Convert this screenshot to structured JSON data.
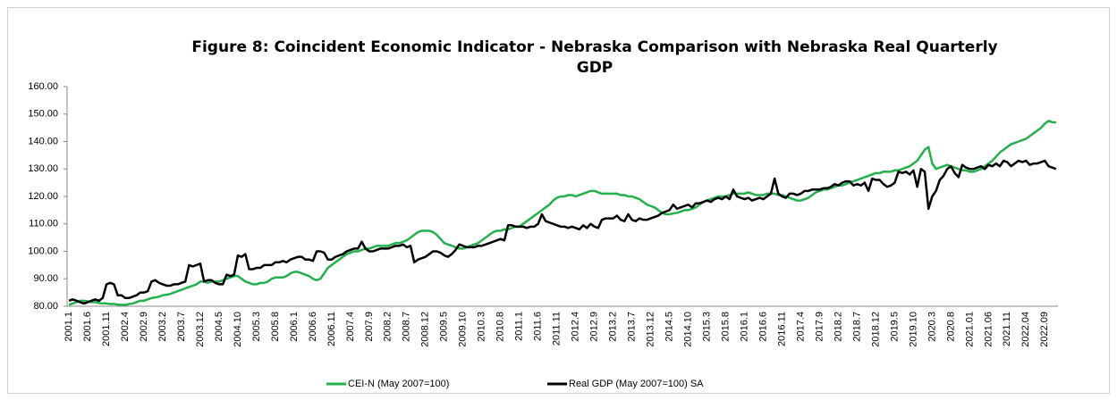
{
  "chart_data": {
    "type": "line",
    "title": "Figure 8: Coincident Economic Indicator - Nebraska Comparison with Nebraska Real Quarterly",
    "title_line2": "GDP",
    "categories": [
      "2001.1",
      null,
      null,
      null,
      null,
      "2001.6",
      null,
      null,
      null,
      null,
      "2001.11",
      null,
      null,
      null,
      null,
      "2002.4",
      null,
      null,
      null,
      null,
      "2002.9",
      null,
      null,
      null,
      null,
      "2003.2",
      null,
      null,
      null,
      null,
      "2003.7",
      null,
      null,
      null,
      null,
      "2003.12",
      null,
      null,
      null,
      null,
      "2004.5",
      null,
      null,
      null,
      null,
      "2004.10",
      null,
      null,
      null,
      null,
      "2005.3",
      null,
      null,
      null,
      null,
      "2005.8",
      null,
      null,
      null,
      null,
      "2006.1",
      null,
      null,
      null,
      null,
      "2006.6",
      null,
      null,
      null,
      null,
      "2006.11",
      null,
      null,
      null,
      null,
      "2007.4",
      null,
      null,
      null,
      null,
      "2007.9",
      null,
      null,
      null,
      null,
      "2008.2",
      null,
      null,
      null,
      null,
      "2008.7",
      null,
      null,
      null,
      null,
      "2008.12",
      null,
      null,
      null,
      null,
      "2009.5",
      null,
      null,
      null,
      null,
      "2009.10",
      null,
      null,
      null,
      null,
      "2010.3",
      null,
      null,
      null,
      null,
      "2010.8",
      null,
      null,
      null,
      null,
      "2011.1",
      null,
      null,
      null,
      null,
      "2011.6",
      null,
      null,
      null,
      null,
      "2011.11",
      null,
      null,
      null,
      null,
      "2012.4",
      null,
      null,
      null,
      null,
      "2012.9",
      null,
      null,
      null,
      null,
      "2013.2",
      null,
      null,
      null,
      null,
      "2013.7",
      null,
      null,
      null,
      null,
      "2013.12",
      null,
      null,
      null,
      null,
      "2014.5",
      null,
      null,
      null,
      null,
      "2014.10",
      null,
      null,
      null,
      null,
      "2015.3",
      null,
      null,
      null,
      null,
      "2015.8",
      null,
      null,
      null,
      null,
      "2016.1",
      null,
      null,
      null,
      null,
      "2016.6",
      null,
      null,
      null,
      null,
      "2016.11",
      null,
      null,
      null,
      null,
      "2017.4",
      null,
      null,
      null,
      null,
      "2017.9",
      null,
      null,
      null,
      null,
      "2018.2",
      null,
      null,
      null,
      null,
      "2018.7",
      null,
      null,
      null,
      null,
      "2018.12",
      null,
      null,
      null,
      null,
      "2019.5",
      null,
      null,
      null,
      null,
      "2019.10",
      null,
      null,
      null,
      null,
      "2020.3",
      null,
      null,
      null,
      null,
      "2020.8",
      null,
      null,
      null,
      null,
      "2021.01",
      null,
      null,
      null,
      null,
      "2021.06",
      null,
      null,
      null,
      null,
      "2021.11",
      null,
      null,
      null,
      null,
      "2022.04",
      null,
      null,
      null,
      null,
      "2022.09",
      null,
      null,
      null
    ],
    "series": [
      {
        "name": "CEI-N (May 2007=100)",
        "color": "#22b14c",
        "values": [
          80.5,
          81,
          81.5,
          82,
          82,
          81.8,
          81.5,
          81.5,
          81.2,
          81,
          81,
          80.8,
          80.8,
          80.6,
          80.5,
          80.5,
          80.8,
          81,
          81.5,
          82,
          82,
          82.5,
          83,
          83.2,
          83.5,
          84,
          84.2,
          84.5,
          85,
          85.5,
          86,
          86.5,
          87,
          87.5,
          88,
          89,
          89,
          88.5,
          89,
          89,
          89,
          89.5,
          90,
          90.5,
          91,
          91,
          90,
          89,
          88.5,
          88,
          88,
          88.5,
          88.5,
          89,
          90,
          90.5,
          90.5,
          90.5,
          91,
          92,
          92.5,
          92.5,
          92,
          91.5,
          91,
          90,
          89.5,
          90,
          92,
          94,
          95,
          96,
          97,
          98,
          99,
          99.5,
          100,
          100,
          100.5,
          101,
          101,
          101.5,
          102,
          102,
          102,
          102,
          102.5,
          103,
          103,
          103.5,
          104,
          105,
          106,
          107,
          107.5,
          107.5,
          107.5,
          107,
          106,
          104.5,
          103,
          102.5,
          102,
          101.5,
          101,
          101,
          101.5,
          102,
          102.5,
          103,
          104,
          105,
          106,
          107,
          107.5,
          107.5,
          108,
          108,
          108.5,
          109,
          109,
          110,
          111,
          112,
          113,
          114,
          115,
          116,
          117,
          118.5,
          119.5,
          120,
          120,
          120.5,
          120.5,
          120,
          120.5,
          121,
          121.5,
          122,
          122,
          121.5,
          121,
          121,
          121,
          121,
          121,
          120.5,
          120.5,
          120,
          120,
          119.5,
          119,
          118,
          117,
          116.5,
          116,
          115,
          114,
          113.5,
          113.5,
          113.8,
          114,
          114.5,
          115,
          115,
          115.5,
          116,
          117,
          118,
          118.5,
          119,
          119.5,
          120,
          120,
          120,
          120.5,
          121,
          121,
          121,
          121,
          121.5,
          121,
          120.5,
          120.5,
          120.5,
          121,
          121,
          121,
          120.5,
          120.5,
          120,
          119.5,
          119,
          118.5,
          118.5,
          119,
          119.5,
          120.5,
          121.5,
          122,
          122.5,
          122.5,
          123,
          123.5,
          124,
          124,
          124.5,
          125,
          125.5,
          126,
          126.5,
          127,
          127.5,
          128,
          128.5,
          128.5,
          129,
          129,
          129,
          129.5,
          129.5,
          130,
          130.5,
          131,
          132,
          133,
          135,
          137,
          138,
          132,
          130,
          130.5,
          131,
          131.5,
          131,
          130.5,
          130,
          129.5,
          129.5,
          129,
          129,
          129.5,
          130,
          131,
          132,
          133,
          134.5,
          136,
          137,
          138,
          139,
          139.5,
          140,
          140.5,
          141,
          142,
          143,
          144,
          145,
          146.5,
          147.5,
          147,
          147
        ]
      },
      {
        "name": "Real GDP (May 2007=100) SA",
        "color": "#000000",
        "values": [
          82,
          82.5,
          82,
          81.5,
          81,
          81.5,
          82,
          82.5,
          82,
          83,
          88,
          88.5,
          88,
          84,
          84,
          83,
          83,
          83.5,
          84,
          85,
          85,
          85.5,
          89,
          89.5,
          88.5,
          88,
          87.5,
          87.5,
          88,
          88,
          88.5,
          89,
          95,
          94.5,
          95,
          95.5,
          89,
          89.5,
          89.5,
          88.5,
          88,
          88,
          91.5,
          91,
          91.5,
          98.5,
          98,
          99,
          93.5,
          93.5,
          94,
          94,
          95,
          95,
          95,
          96,
          96,
          96.5,
          96,
          97,
          97.5,
          98,
          98,
          97,
          97,
          96.5,
          100,
          100,
          99.5,
          97,
          97,
          98,
          98.5,
          99,
          100,
          100.5,
          101,
          101,
          103.5,
          101,
          100,
          100,
          100.5,
          101,
          101,
          101,
          101.5,
          102,
          102,
          102.5,
          101.5,
          102,
          96,
          97,
          97.5,
          98,
          99,
          100,
          100,
          99.5,
          98.5,
          98,
          99,
          100.5,
          102.5,
          102,
          101.5,
          101.5,
          101.5,
          102,
          102,
          102.5,
          103,
          103.5,
          104,
          104.5,
          104,
          109.5,
          109.5,
          109,
          109,
          109,
          108.5,
          109,
          109,
          110,
          113.5,
          111,
          110.5,
          110,
          109.5,
          109,
          109,
          108.5,
          109,
          108.5,
          108,
          109.5,
          108.5,
          110,
          109,
          108.5,
          111.5,
          112,
          112,
          112,
          113,
          111.5,
          111,
          113.5,
          111.5,
          111,
          112,
          111.5,
          111.5,
          112,
          112.5,
          113,
          114,
          114.5,
          115,
          117,
          115.5,
          116,
          116.5,
          117,
          116,
          117.5,
          117.5,
          118,
          118.5,
          118,
          119,
          119.5,
          119,
          120,
          119,
          122.5,
          120,
          119.5,
          119,
          119.5,
          118.5,
          119,
          119.5,
          119,
          120,
          121,
          126.5,
          121,
          120,
          119.5,
          121,
          121,
          120.5,
          121,
          122,
          122,
          122.5,
          122.5,
          122.5,
          123,
          123,
          123.5,
          124.5,
          124,
          125,
          125.5,
          125.5,
          124,
          124.5,
          124,
          125,
          122,
          126.5,
          126,
          126,
          124.5,
          123.5,
          124,
          125,
          129,
          128.5,
          129,
          128,
          129.5,
          123.5,
          130,
          129,
          115.5,
          120,
          122,
          126,
          127.5,
          130,
          131,
          128.5,
          127,
          131.5,
          130.5,
          130,
          130,
          130.5,
          131,
          130,
          131.5,
          131,
          132,
          131,
          133,
          132.5,
          131,
          132,
          133,
          132.5,
          133,
          131.5,
          132,
          132,
          132.5,
          133,
          131,
          130.5,
          130
        ]
      }
    ],
    "ylim": [
      80,
      160
    ],
    "yticks": [
      {
        "value": 80,
        "label": "80.00"
      },
      {
        "value": 90,
        "label": "90.00"
      },
      {
        "value": 100,
        "label": "100.00"
      },
      {
        "value": 110,
        "label": "110.00"
      },
      {
        "value": 120,
        "label": "120.00"
      },
      {
        "value": 130,
        "label": "130.00"
      },
      {
        "value": 140,
        "label": "140.00"
      },
      {
        "value": 150,
        "label": "150.00"
      },
      {
        "value": 160,
        "label": "160.00"
      }
    ],
    "grid": false,
    "legend": "bottom"
  }
}
